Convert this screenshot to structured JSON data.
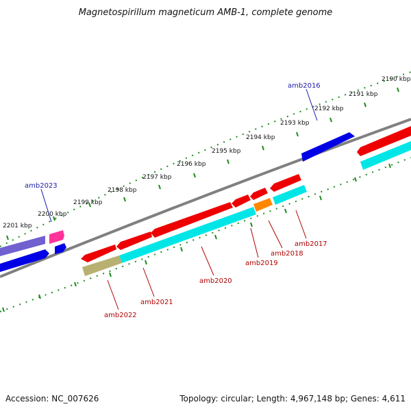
{
  "title": "Magnetospirillum magneticum AMB-1, complete genome",
  "footer": {
    "accession": "Accession: NC_007626",
    "topology": "Topology: circular; Length: 4,967,148 bp; Genes: 4,611"
  },
  "kbp_labels": [
    "2190 kbp",
    "2191 kbp",
    "2192 kbp",
    "2193 kbp",
    "2194 kbp",
    "2195 kbp",
    "2196 kbp",
    "2197 kbp",
    "2198 kbp",
    "2199 kbp",
    "2200 kbp",
    "2201 kbp"
  ],
  "gene_labels": {
    "amb2016": "amb2016",
    "amb2017": "amb2017",
    "amb2018": "amb2018",
    "amb2019": "amb2019",
    "amb2020": "amb2020",
    "amb2021": "amb2021",
    "amb2022": "amb2022",
    "amb2023": "amb2023"
  },
  "colors": {
    "gene_red": "#ee0000",
    "gene_cyan": "#00e6e6",
    "gene_blue": "#0000e6",
    "gene_purple": "#7060d0",
    "gene_magenta": "#ff3399",
    "gene_orange": "#ff8800",
    "gene_olive": "#b8b070",
    "backbone": "#808080",
    "ruler": "#1e8a1e",
    "label_blue": "#1a1aa6",
    "label_red": "#b00000"
  }
}
